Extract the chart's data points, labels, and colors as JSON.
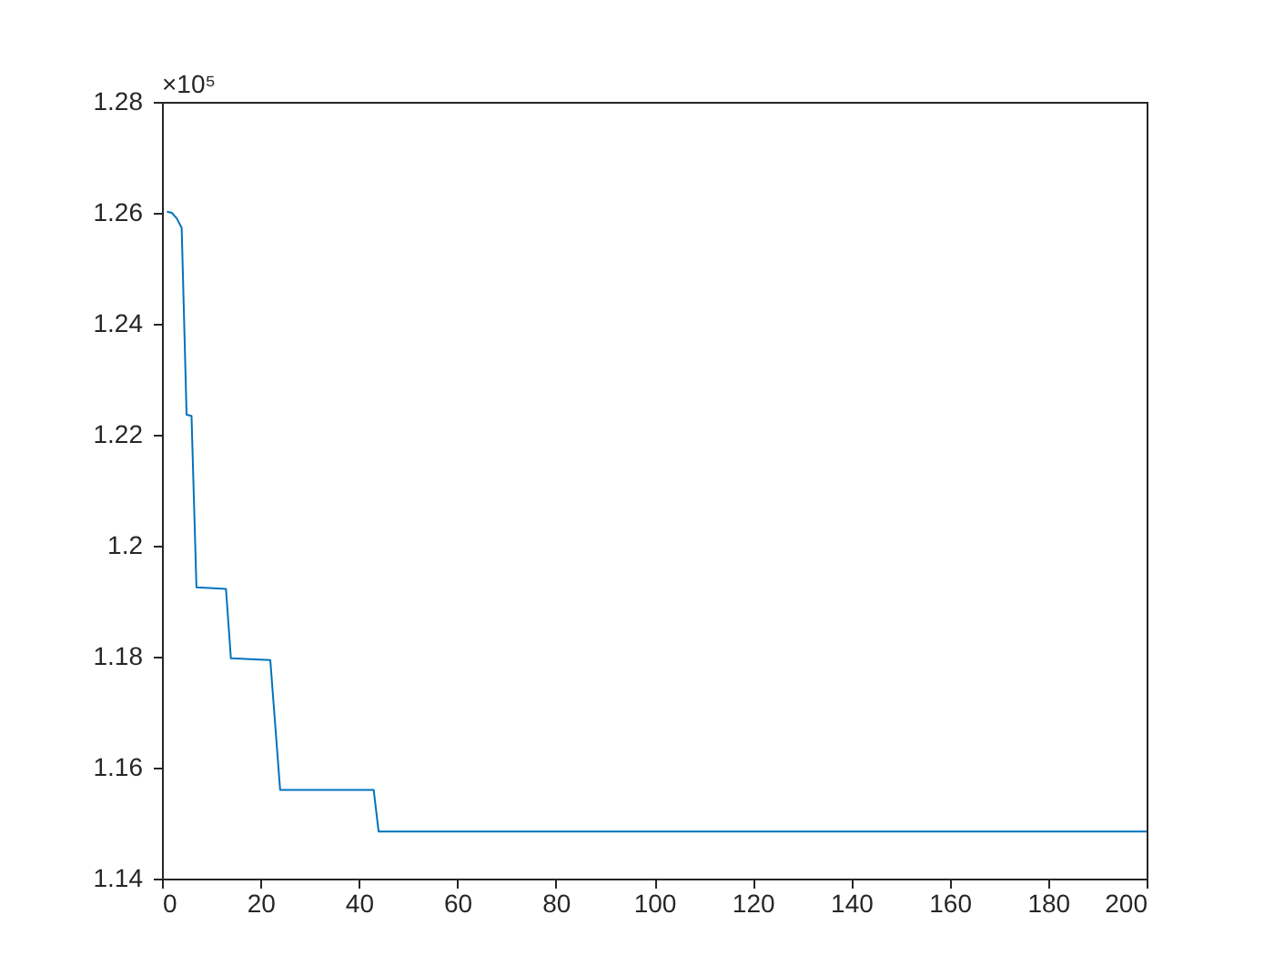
{
  "chart_data": {
    "type": "line",
    "x": [
      1,
      2,
      3,
      4,
      5,
      6,
      7,
      13,
      14,
      22,
      24,
      43,
      44,
      200
    ],
    "series": [
      {
        "color": "#0072bd",
        "values": [
          1.2602,
          1.26,
          1.259,
          1.2573,
          1.2236,
          1.2234,
          1.1925,
          1.1922,
          1.1797,
          1.1794,
          1.156,
          1.156,
          1.1485,
          1.1485
        ]
      }
    ],
    "xlim": [
      0,
      200
    ],
    "xticks": [
      0,
      20,
      40,
      60,
      80,
      100,
      120,
      140,
      160,
      180,
      200
    ],
    "ylim": [
      1.14,
      1.28
    ],
    "yticks": [
      1.14,
      1.16,
      1.18,
      {
        "value": 1.2,
        "label": "1.2"
      },
      1.22,
      1.24,
      1.26,
      1.28
    ],
    "annotations": [
      "×10⁵"
    ],
    "grid": false,
    "legend": false,
    "marker": "none",
    "line_style": "solid"
  }
}
